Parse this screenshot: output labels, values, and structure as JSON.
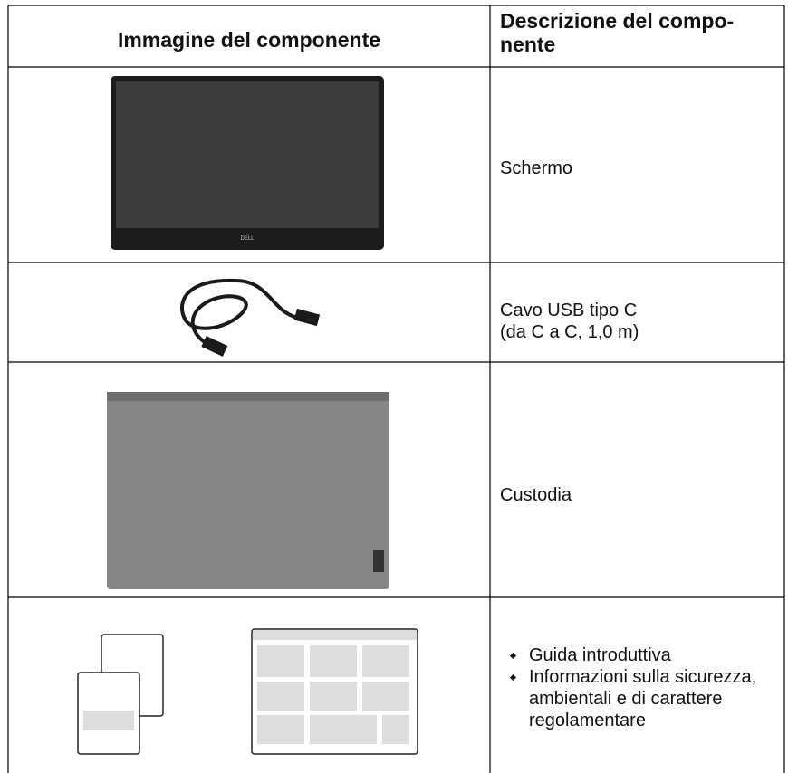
{
  "table": {
    "header": {
      "image_column": "Immagine del componente",
      "description_column": [
        "Descrizione del compo-",
        "nente"
      ]
    },
    "rows": [
      {
        "description": [
          "Schermo"
        ],
        "image_label": "DELL"
      },
      {
        "description": [
          "Cavo USB tipo C",
          "(da C a C, 1,0 m)"
        ]
      },
      {
        "description": [
          "Custodia"
        ]
      },
      {
        "items": [
          "Guida introduttiva",
          "Informazioni sulla sicurezza, ambientali e di carattere regolamentare"
        ]
      }
    ]
  }
}
